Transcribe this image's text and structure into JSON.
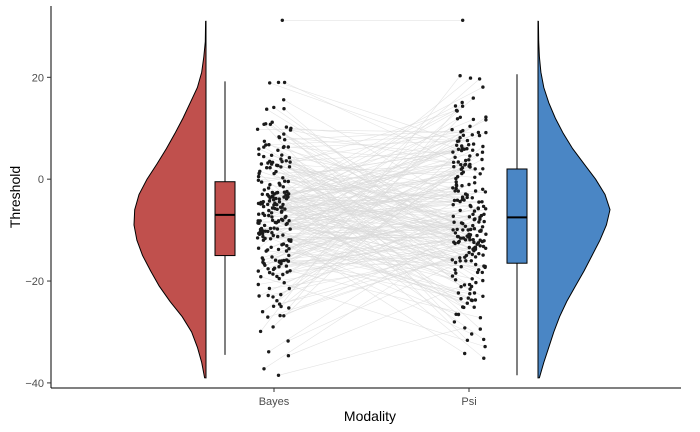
{
  "chart_data": {
    "type": "raincloud",
    "xlabel": "Modality",
    "ylabel": "Threshold",
    "categories": [
      "Bayes",
      "Psi"
    ],
    "ylim": [
      -41,
      34
    ],
    "yticks": [
      -40,
      -20,
      0,
      20
    ],
    "grid": false,
    "colors": {
      "Bayes": "#c0504d",
      "Psi": "#4a86c5",
      "lines": "#d9d9d9",
      "points": "#1a1a1a"
    },
    "boxplots": [
      {
        "name": "Bayes",
        "min": -34.5,
        "q1": -15,
        "median": -7,
        "q3": -0.5,
        "max": 19.2
      },
      {
        "name": "Psi",
        "min": -38.5,
        "q1": -16.5,
        "median": -7.5,
        "q3": 2,
        "max": 20.6
      }
    ],
    "density_shape": {
      "Bayes": [
        [
          -39,
          0.02
        ],
        [
          -36,
          0.06
        ],
        [
          -33,
          0.12
        ],
        [
          -30,
          0.2
        ],
        [
          -27,
          0.33
        ],
        [
          -24,
          0.5
        ],
        [
          -21,
          0.65
        ],
        [
          -18,
          0.77
        ],
        [
          -15,
          0.88
        ],
        [
          -12,
          0.96
        ],
        [
          -9,
          1.0
        ],
        [
          -6,
          0.99
        ],
        [
          -3,
          0.93
        ],
        [
          0,
          0.82
        ],
        [
          3,
          0.68
        ],
        [
          6,
          0.55
        ],
        [
          9,
          0.43
        ],
        [
          12,
          0.32
        ],
        [
          15,
          0.22
        ],
        [
          18,
          0.12
        ],
        [
          21,
          0.06
        ],
        [
          24,
          0.03
        ],
        [
          27,
          0.01
        ],
        [
          31,
          0.005
        ]
      ],
      "Psi": [
        [
          -39,
          0.02
        ],
        [
          -36,
          0.08
        ],
        [
          -33,
          0.15
        ],
        [
          -30,
          0.22
        ],
        [
          -27,
          0.3
        ],
        [
          -24,
          0.4
        ],
        [
          -21,
          0.52
        ],
        [
          -18,
          0.64
        ],
        [
          -15,
          0.75
        ],
        [
          -12,
          0.86
        ],
        [
          -9,
          0.95
        ],
        [
          -6,
          1.0
        ],
        [
          -3,
          0.93
        ],
        [
          0,
          0.8
        ],
        [
          3,
          0.64
        ],
        [
          6,
          0.48
        ],
        [
          9,
          0.35
        ],
        [
          12,
          0.24
        ],
        [
          15,
          0.15
        ],
        [
          18,
          0.08
        ],
        [
          21,
          0.04
        ],
        [
          24,
          0.02
        ],
        [
          27,
          0.01
        ],
        [
          31,
          0.005
        ]
      ]
    },
    "n_pairs": 220
  }
}
